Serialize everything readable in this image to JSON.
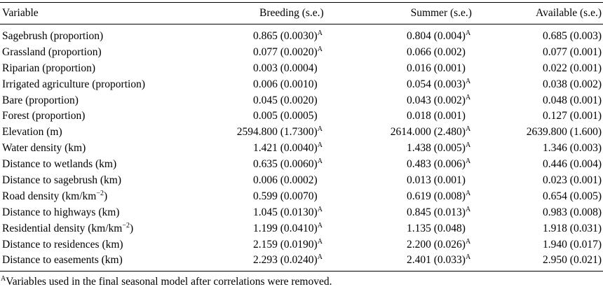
{
  "table": {
    "headers": [
      "Variable",
      "Breeding (s.e.)",
      "Summer (s.e.)",
      "Available (s.e.)"
    ],
    "rows": [
      {
        "variable": "Sagebrush (proportion)",
        "breeding": "0.865 (0.0030)",
        "breeding_mark": "A",
        "summer": "0.804 (0.004)",
        "summer_mark": "A",
        "available": "0.685 (0.003)"
      },
      {
        "variable": "Grassland (proportion)",
        "breeding": "0.077 (0.0020)",
        "breeding_mark": "A",
        "summer": "0.066 (0.002)",
        "summer_mark": "",
        "available": "0.077 (0.001)"
      },
      {
        "variable": "Riparian (proportion)",
        "breeding": "0.003 (0.0004)",
        "breeding_mark": "",
        "summer": "0.016 (0.001)",
        "summer_mark": "",
        "available": "0.022 (0.001)"
      },
      {
        "variable": "Irrigated agriculture (proportion)",
        "breeding": "0.006 (0.0010)",
        "breeding_mark": "",
        "summer": "0.054 (0.003)",
        "summer_mark": "A",
        "available": "0.038 (0.002)"
      },
      {
        "variable": "Bare (proportion)",
        "breeding": "0.045 (0.0020)",
        "breeding_mark": "",
        "summer": "0.043 (0.002)",
        "summer_mark": "A",
        "available": "0.048 (0.001)"
      },
      {
        "variable": "Forest (proportion)",
        "breeding": "0.005 (0.0005)",
        "breeding_mark": "",
        "summer": "0.018 (0.001)",
        "summer_mark": "",
        "available": "0.127 (0.001)"
      },
      {
        "variable": "Elevation (m)",
        "breeding": "2594.800 (1.7300)",
        "breeding_mark": "A",
        "summer": "2614.000 (2.480)",
        "summer_mark": "A",
        "available": "2639.800 (1.600)"
      },
      {
        "variable": "Water density (km)",
        "breeding": "1.421 (0.0040)",
        "breeding_mark": "A",
        "summer": "1.438 (0.005)",
        "summer_mark": "A",
        "available": "1.346 (0.003)"
      },
      {
        "variable": "Distance to wetlands (km)",
        "breeding": "0.635 (0.0060)",
        "breeding_mark": "A",
        "summer": "0.483 (0.006)",
        "summer_mark": "A",
        "available": "0.446 (0.004)"
      },
      {
        "variable": "Distance to sagebrush (km)",
        "breeding": "0.006 (0.0002)",
        "breeding_mark": "",
        "summer": "0.013 (0.001)",
        "summer_mark": "",
        "available": "0.023 (0.001)"
      },
      {
        "variable": "Road density (km/km",
        "variable_sup": "−2",
        "variable_tail": ")",
        "breeding": "0.599 (0.0070)",
        "breeding_mark": "",
        "summer": "0.619 (0.008)",
        "summer_mark": "A",
        "available": "0.654 (0.005)"
      },
      {
        "variable": "Distance to highways (km)",
        "breeding": "1.045 (0.0130)",
        "breeding_mark": "A",
        "summer": "0.845 (0.013)",
        "summer_mark": "A",
        "available": "0.983 (0.008)"
      },
      {
        "variable": "Residential density (km/km",
        "variable_sup": "−2",
        "variable_tail": ")",
        "breeding": "1.199 (0.0410)",
        "breeding_mark": "A",
        "summer": "1.135 (0.048)",
        "summer_mark": "",
        "available": "1.918 (0.031)"
      },
      {
        "variable": "Distance to residences (km)",
        "breeding": "2.159 (0.0190)",
        "breeding_mark": "A",
        "summer": "2.200 (0.026)",
        "summer_mark": "A",
        "available": "1.940 (0.017)"
      },
      {
        "variable": "Distance to easements (km)",
        "breeding": "2.293 (0.0240)",
        "breeding_mark": "A",
        "summer": "2.401 (0.033)",
        "summer_mark": "A",
        "available": "2.950 (0.021)"
      }
    ]
  },
  "footnote": {
    "mark": "A",
    "text": "Variables used in the final seasonal model after correlations were removed."
  }
}
